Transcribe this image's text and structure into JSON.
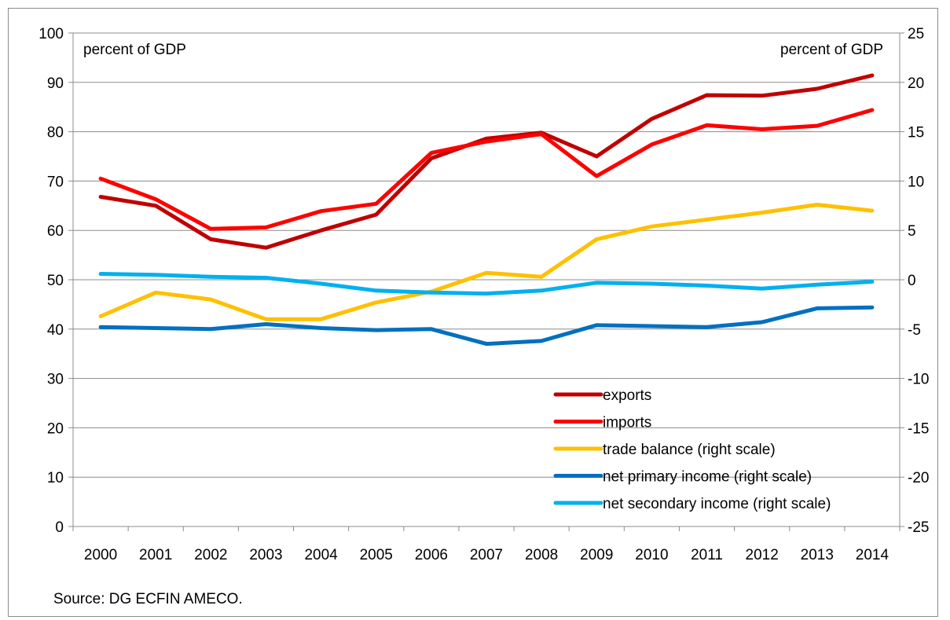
{
  "chart_data": {
    "type": "line",
    "x": [
      "2000",
      "2001",
      "2002",
      "2003",
      "2004",
      "2005",
      "2006",
      "2007",
      "2008",
      "2009",
      "2010",
      "2011",
      "2012",
      "2013",
      "2014"
    ],
    "left_axis": {
      "label": "percent of GDP",
      "ylim": [
        0,
        100
      ],
      "ticks": [
        "0",
        "10",
        "20",
        "30",
        "40",
        "50",
        "60",
        "70",
        "80",
        "90",
        "100"
      ]
    },
    "right_axis": {
      "label": "percent of GDP",
      "ylim": [
        -25,
        25
      ],
      "ticks": [
        "-25",
        "-20",
        "-15",
        "-10",
        "-5",
        "0",
        "5",
        "10",
        "15",
        "20",
        "25"
      ]
    },
    "grid": "horizontal",
    "legend": "bottom-right",
    "source": "Source: DG ECFIN AMECO.",
    "series": [
      {
        "name": "exports",
        "axis": "left",
        "color": "#c00000",
        "values": [
          66.8,
          65.0,
          58.2,
          56.5,
          60.0,
          63.2,
          74.6,
          78.6,
          79.8,
          75.0,
          82.6,
          87.4,
          87.3,
          88.7,
          91.4
        ]
      },
      {
        "name": "imports",
        "axis": "left",
        "color": "#ff0000",
        "values": [
          70.5,
          66.3,
          60.3,
          60.6,
          63.9,
          65.4,
          75.7,
          78.0,
          79.5,
          71.0,
          77.4,
          81.3,
          80.5,
          81.2,
          84.4
        ]
      },
      {
        "name": "trade balance (right scale)",
        "axis": "right",
        "color": "#ffc000",
        "values": [
          -3.7,
          -1.3,
          -2.0,
          -4.0,
          -4.0,
          -2.3,
          -1.2,
          0.7,
          0.3,
          4.1,
          5.4,
          6.1,
          6.8,
          7.6,
          7.0
        ]
      },
      {
        "name": "net primary income (right scale)",
        "axis": "right",
        "color": "#0070c0",
        "values": [
          -4.8,
          -4.9,
          -5.0,
          -4.5,
          -4.9,
          -5.1,
          -5.0,
          -6.5,
          -6.2,
          -4.6,
          -4.7,
          -4.8,
          -4.3,
          -2.9,
          -2.8
        ]
      },
      {
        "name": "net secondary income (right scale)",
        "axis": "right",
        "color": "#00b0f0",
        "values": [
          0.6,
          0.5,
          0.3,
          0.2,
          -0.4,
          -1.1,
          -1.3,
          -1.4,
          -1.1,
          -0.3,
          -0.4,
          -0.6,
          -0.9,
          -0.5,
          -0.2
        ]
      }
    ]
  }
}
